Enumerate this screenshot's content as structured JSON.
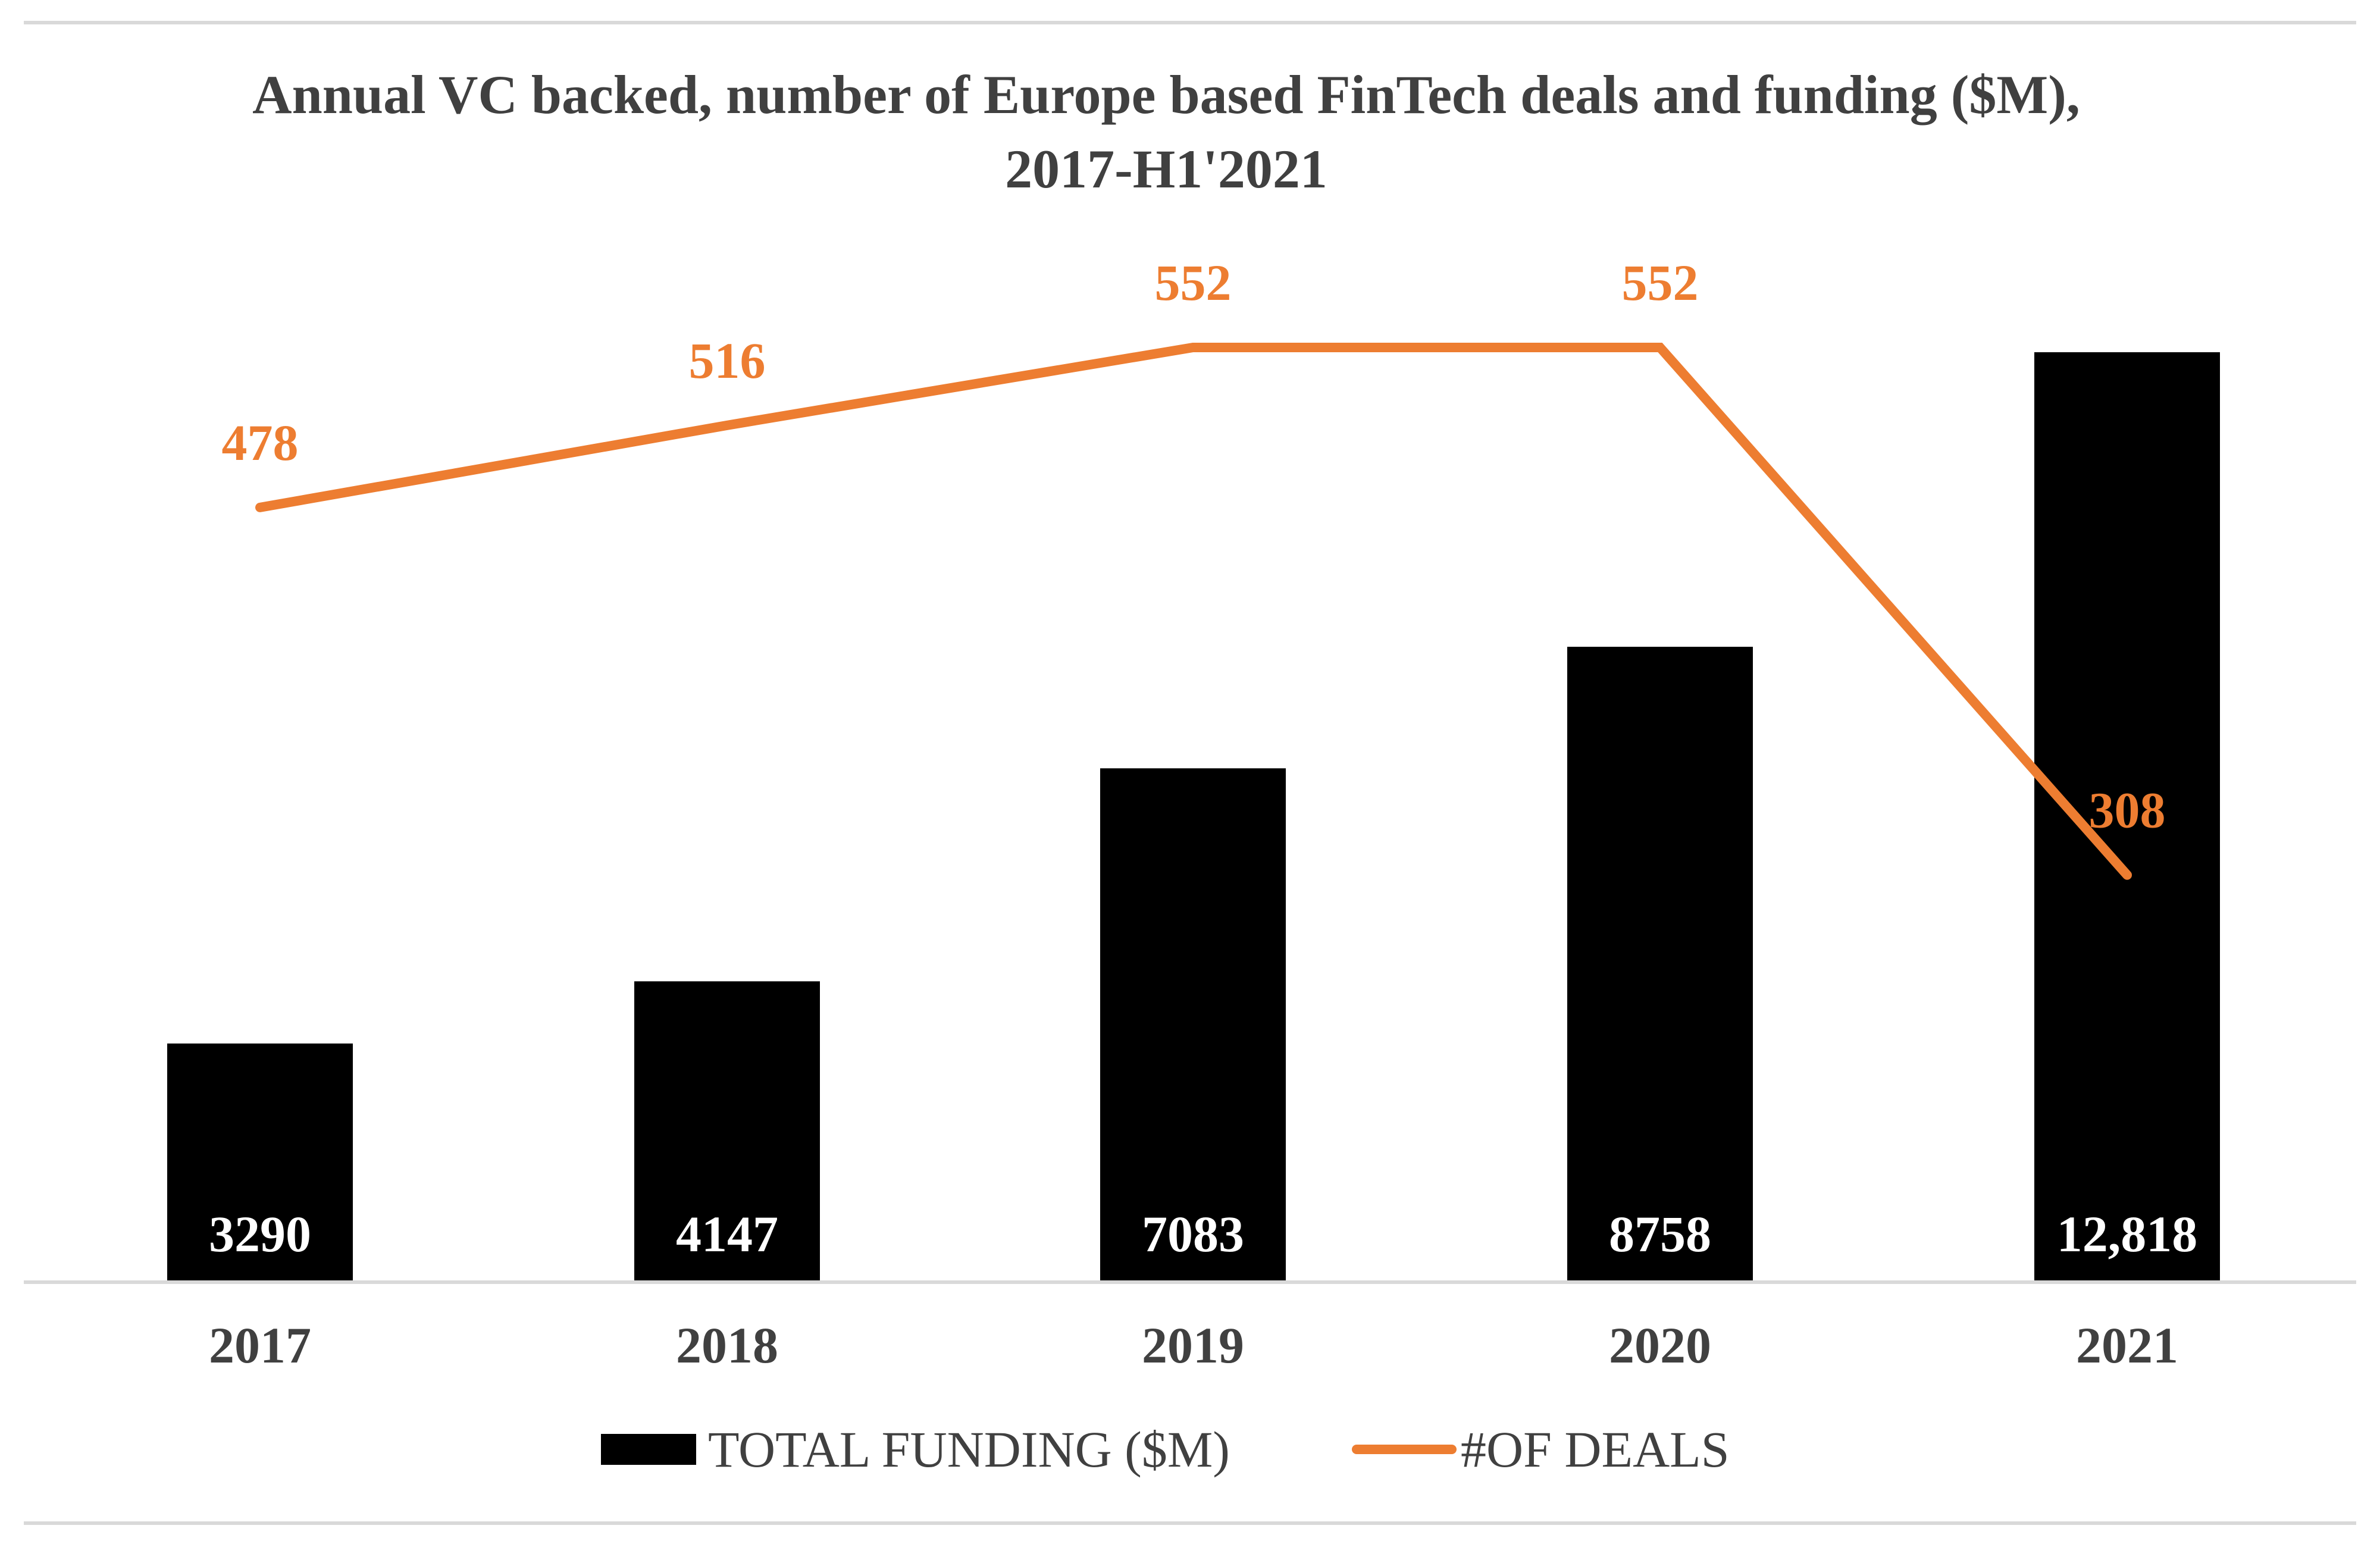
{
  "chart_data": {
    "type": "bar",
    "title_lines": [
      "Annual VC backed, number of Europe based FinTech deals and funding ($M),",
      "2017-H1'2021"
    ],
    "categories": [
      "2017",
      "2018",
      "2019",
      "2020",
      "2021"
    ],
    "series": [
      {
        "name": "TOTAL FUNDING ($M)",
        "type": "bar",
        "values": [
          3290,
          4147,
          7083,
          8758,
          12818
        ],
        "labels": [
          "3290",
          "4147",
          "7083",
          "8758",
          "12,818"
        ],
        "color": "#000000",
        "label_color": "#ffffff"
      },
      {
        "name": "#OF DEALS",
        "type": "line",
        "values": [
          478,
          516,
          552,
          552,
          308
        ],
        "labels": [
          "478",
          "516",
          "552",
          "552",
          "308"
        ],
        "color": "#ED7D31",
        "label_color": "#ED7D31"
      }
    ],
    "legend_position": "bottom",
    "grid": false
  }
}
